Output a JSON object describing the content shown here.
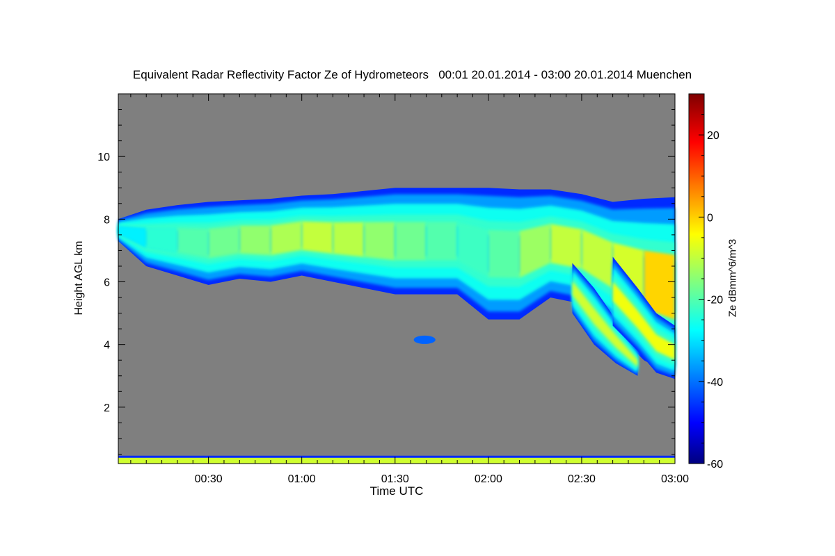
{
  "chart_data": {
    "type": "heatmap",
    "title": "Equivalent Radar Reflectivity Factor Ze of Hydrometeors   00:01 20.01.2014 - 03:00 20.01.2014 Muenchen",
    "xlabel": "Time UTC",
    "ylabel": "Height AGL km",
    "colorbar_label": "Ze dBmm^6/m^3",
    "x_range_minutes": [
      1,
      180
    ],
    "y_range_km": [
      0.2,
      12
    ],
    "x_ticks": [
      {
        "label": "00:30",
        "minutes": 30
      },
      {
        "label": "01:00",
        "minutes": 60
      },
      {
        "label": "01:30",
        "minutes": 90
      },
      {
        "label": "02:00",
        "minutes": 120
      },
      {
        "label": "02:30",
        "minutes": 150
      },
      {
        "label": "03:00",
        "minutes": 180
      }
    ],
    "y_ticks": [
      2,
      4,
      6,
      8,
      10
    ],
    "colorbar_range": [
      -60,
      30
    ],
    "colorbar_ticks": [
      -60,
      -40,
      -20,
      0,
      20
    ],
    "background_color": "#7f7f7f",
    "colormap": "jet",
    "cloud_layer": {
      "minutes": [
        1,
        10,
        20,
        30,
        40,
        50,
        60,
        70,
        80,
        90,
        100,
        110,
        120,
        130,
        140,
        150,
        160,
        170,
        180
      ],
      "top_km": [
        8.0,
        8.3,
        8.45,
        8.55,
        8.6,
        8.65,
        8.75,
        8.8,
        8.9,
        9.0,
        9.0,
        9.0,
        9.0,
        8.95,
        8.95,
        8.8,
        8.55,
        8.65,
        8.7
      ],
      "base_km": [
        7.3,
        6.5,
        6.2,
        5.9,
        6.1,
        6.0,
        6.2,
        6.0,
        5.8,
        5.6,
        5.6,
        5.6,
        4.8,
        4.8,
        5.5,
        5.3,
        4.5,
        3.5,
        2.95
      ],
      "core_dbz": [
        -30,
        -25,
        -20,
        -18,
        -15,
        -12,
        -10,
        -8,
        -12,
        -15,
        -18,
        -20,
        -22,
        -15,
        -10,
        -8,
        -10,
        -5,
        5
      ]
    },
    "virga": [
      {
        "minutes": [
          147,
          154,
          161,
          168
        ],
        "top_km": [
          6.6,
          5.8,
          4.8,
          3.8
        ],
        "base_km": [
          5.0,
          4.0,
          3.4,
          3.0
        ],
        "core_dbz": -8
      },
      {
        "minutes": [
          160,
          168,
          174,
          180
        ],
        "top_km": [
          6.8,
          5.8,
          5.0,
          4.6
        ],
        "base_km": [
          4.6,
          3.8,
          3.1,
          2.9
        ],
        "core_dbz": -5
      }
    ],
    "isolated_echo": {
      "minutes": [
        96,
        103
      ],
      "height_km": [
        4.3,
        4.0
      ],
      "dbz": -40
    },
    "surface_layer": {
      "top_km": 0.45,
      "dbz": -8
    }
  }
}
